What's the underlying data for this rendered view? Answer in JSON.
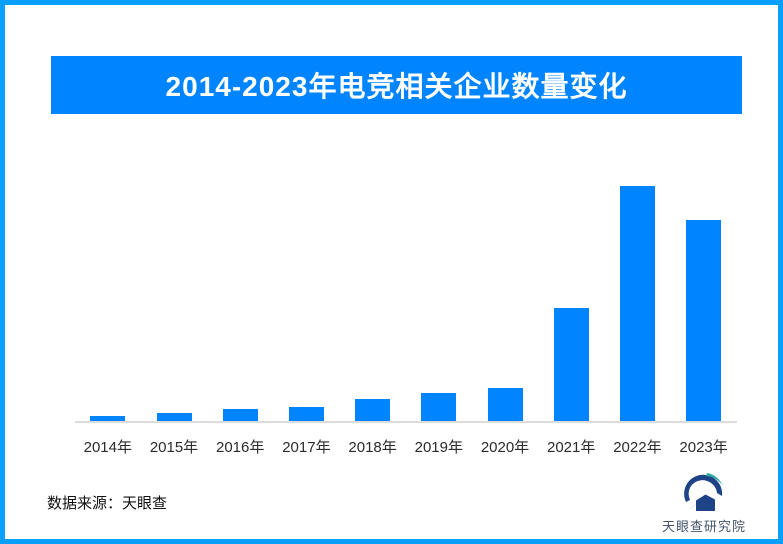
{
  "page": {
    "border_color": "#0a9ffc",
    "background_color": "#ffffff"
  },
  "header": {
    "title": "2014-2023年电竞相关企业数量变化",
    "background_color": "#0084ff",
    "text_color": "#ffffff"
  },
  "chart_data": {
    "type": "bar",
    "title": "2014-2023年电竞相关企业数量变化",
    "categories": [
      "2014年",
      "2015年",
      "2016年",
      "2017年",
      "2018年",
      "2019年",
      "2020年",
      "2021年",
      "2022年",
      "2023年"
    ],
    "values": [
      5,
      8,
      12,
      14,
      22,
      28,
      33,
      113,
      235,
      201
    ],
    "value_labels_shown": false,
    "y_axis_shown": false,
    "xlabel": "",
    "ylabel": "",
    "ylim": [
      0,
      250
    ],
    "grid": false,
    "legend": false,
    "bar_color": "#0084ff",
    "axis_line_color": "#dcdcdc"
  },
  "footer": {
    "source_label": "数据来源：天眼查",
    "logo_text": "天眼查研究院",
    "logo_navy_color": "#1f4387",
    "logo_teal_color": "#2fa89e"
  }
}
